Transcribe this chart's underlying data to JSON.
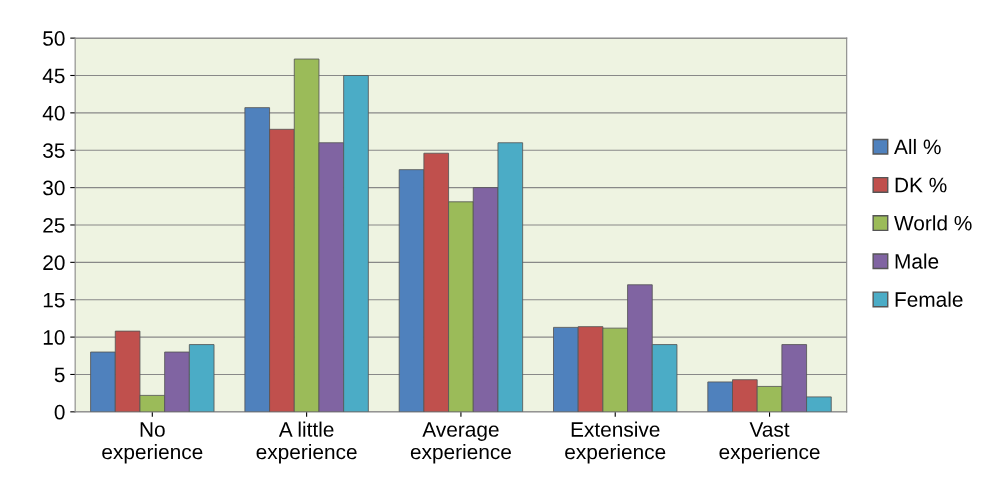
{
  "chart_data": {
    "type": "bar",
    "categories": [
      "No\nexperience",
      "A little\nexperience",
      "Average\nexperience",
      "Extensive\nexperience",
      "Vast\nexperience"
    ],
    "series": [
      {
        "name": "All %",
        "color": "#4f81bd",
        "values": [
          8,
          40.7,
          32.4,
          11.3,
          4
        ]
      },
      {
        "name": "DK %",
        "color": "#c0504d",
        "values": [
          10.8,
          37.8,
          34.6,
          11.4,
          4.3
        ]
      },
      {
        "name": "World %",
        "color": "#9bbb59",
        "values": [
          2.2,
          47.2,
          28.1,
          11.2,
          3.4
        ]
      },
      {
        "name": "Male",
        "color": "#8064a2",
        "values": [
          8,
          36,
          30,
          17,
          9
        ]
      },
      {
        "name": "Female",
        "color": "#4bacc6",
        "values": [
          9,
          45,
          36,
          9,
          2
        ]
      }
    ],
    "ylim": [
      0,
      50
    ],
    "yticks": [
      0,
      5,
      10,
      15,
      20,
      25,
      30,
      35,
      40,
      45,
      50
    ],
    "grid": "y",
    "legend": "right"
  }
}
